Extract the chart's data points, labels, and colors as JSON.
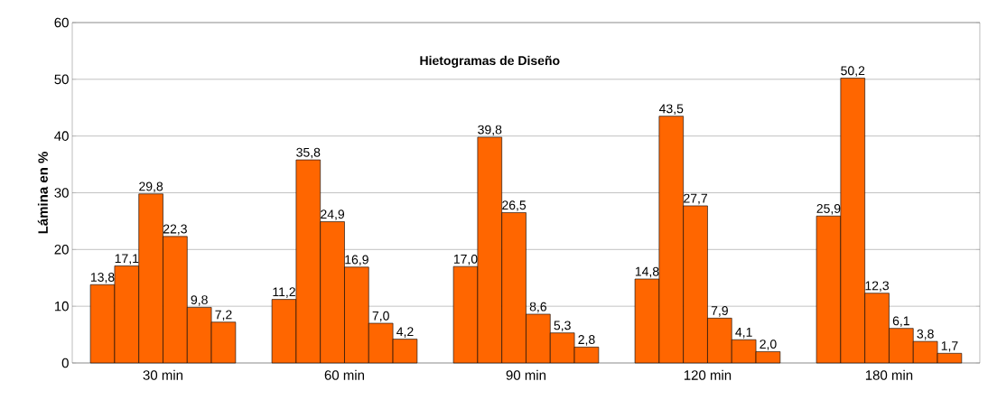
{
  "chart_data": {
    "type": "bar",
    "title": "Hietogramas de Diseño",
    "ylabel": "Lámina en %",
    "categories": [
      "30 min",
      "60 min",
      "90 min",
      "120 min",
      "180 min"
    ],
    "series": [
      {
        "color": "#ff6600",
        "values": [
          13.8,
          11.2,
          17.0,
          14.8,
          25.9
        ],
        "value_labels": [
          "13,8",
          "11,2",
          "17,0",
          "14,8",
          "25,9"
        ]
      },
      {
        "color": "#ff6600",
        "values": [
          17.1,
          35.8,
          39.8,
          43.5,
          50.2
        ],
        "value_labels": [
          "17,1",
          "35,8",
          "39,8",
          "43,5",
          "50,2"
        ]
      },
      {
        "color": "#ff6600",
        "values": [
          29.8,
          24.9,
          26.5,
          27.7,
          12.3
        ],
        "value_labels": [
          "29,8",
          "24,9",
          "26,5",
          "27,7",
          "12,3"
        ]
      },
      {
        "color": "#ff6600",
        "values": [
          22.3,
          16.9,
          8.6,
          7.9,
          6.1
        ],
        "value_labels": [
          "22,3",
          "16,9",
          "8,6",
          "7,9",
          "6,1"
        ]
      },
      {
        "color": "#ff6600",
        "values": [
          9.8,
          7.0,
          5.3,
          4.1,
          3.8
        ],
        "value_labels": [
          "9,8",
          "7,0",
          "5,3",
          "4,1",
          "3,8"
        ]
      },
      {
        "color": "#ff6600",
        "values": [
          7.2,
          4.2,
          2.8,
          2.0,
          1.7
        ],
        "value_labels": [
          "7,2",
          "4,2",
          "2,8",
          "2,0",
          "1,7"
        ]
      }
    ],
    "ylim": [
      0,
      60
    ],
    "yticks": [
      0,
      10,
      20,
      30,
      40,
      50,
      60
    ],
    "grid": true
  }
}
